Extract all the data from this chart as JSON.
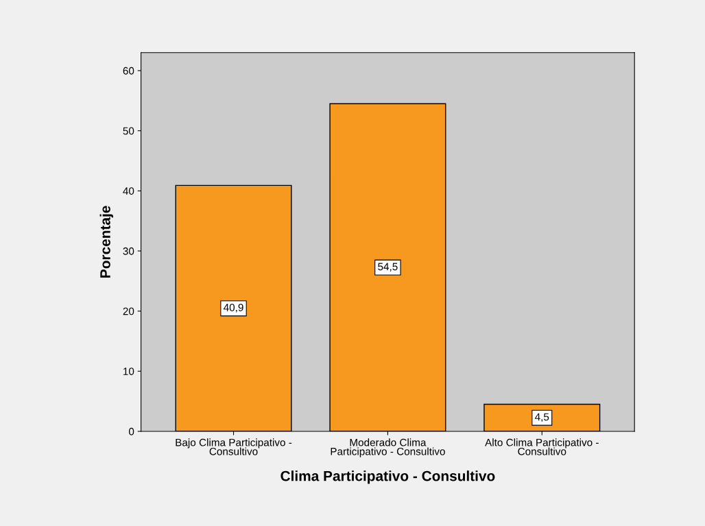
{
  "chart_data": {
    "type": "bar",
    "xlabel": "Clima Participativo - Consultivo",
    "ylabel": "Porcentaje",
    "categories": [
      "Bajo Clima Participativo -\nConsultivo",
      "Moderado Clima\nParticipativo - Consultivo",
      "Alto Clima Participativo -\nConsultivo"
    ],
    "values": [
      40.9,
      54.5,
      4.5
    ],
    "value_labels": [
      "40,9",
      "54,5",
      "4,5"
    ],
    "color": "#f7991f",
    "ylim": [
      0,
      63
    ],
    "yticks": [
      0,
      10,
      20,
      30,
      40,
      50,
      60
    ],
    "grid": false,
    "legend": false
  }
}
